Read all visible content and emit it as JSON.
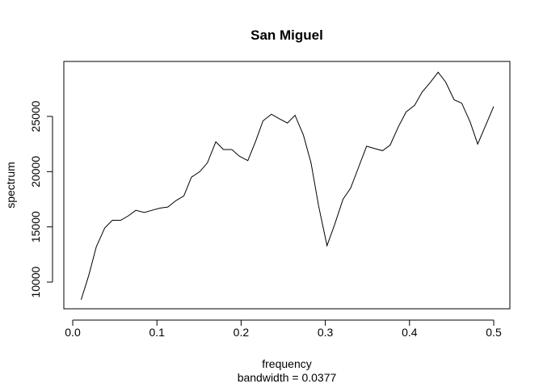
{
  "chart_data": {
    "type": "line",
    "title": "San Miguel",
    "xlabel": "frequency",
    "sublabel": "bandwidth = 0.0377",
    "ylabel": "spectrum",
    "xlim": [
      0,
      0.5
    ],
    "ylim": [
      8500,
      29000
    ],
    "xticks": [
      0.0,
      0.1,
      0.2,
      0.3,
      0.4,
      0.5
    ],
    "xtick_labels": [
      "0.0",
      "0.1",
      "0.2",
      "0.3",
      "0.4",
      "0.5"
    ],
    "yticks": [
      10000,
      15000,
      20000,
      25000
    ],
    "ytick_labels": [
      "10000",
      "15000",
      "20000",
      "25000"
    ],
    "grid": false,
    "series": [
      {
        "x": [
          0.01,
          0.019,
          0.028,
          0.038,
          0.047,
          0.057,
          0.066,
          0.075,
          0.085,
          0.094,
          0.104,
          0.113,
          0.123,
          0.132,
          0.141,
          0.151,
          0.16,
          0.17,
          0.179,
          0.189,
          0.198,
          0.208,
          0.217,
          0.226,
          0.236,
          0.245,
          0.255,
          0.264,
          0.274,
          0.283,
          0.292,
          0.302,
          0.311,
          0.321,
          0.33,
          0.34,
          0.349,
          0.358,
          0.368,
          0.377,
          0.387,
          0.396,
          0.406,
          0.415,
          0.425,
          0.434,
          0.443,
          0.453,
          0.462,
          0.472,
          0.481,
          0.5
        ],
        "values": [
          8400,
          10600,
          13200,
          14900,
          15600,
          15600,
          16000,
          16500,
          16300,
          16500,
          16700,
          16800,
          17400,
          17800,
          19500,
          20000,
          20800,
          22700,
          22000,
          22000,
          21400,
          21000,
          22700,
          24600,
          25200,
          24800,
          24400,
          25100,
          23300,
          20800,
          16900,
          13300,
          15200,
          17500,
          18500,
          20500,
          22300,
          22100,
          21900,
          22400,
          24100,
          25400,
          26000,
          27200,
          28100,
          29000,
          28100,
          26500,
          26200,
          24500,
          22500,
          25900
        ]
      }
    ]
  }
}
